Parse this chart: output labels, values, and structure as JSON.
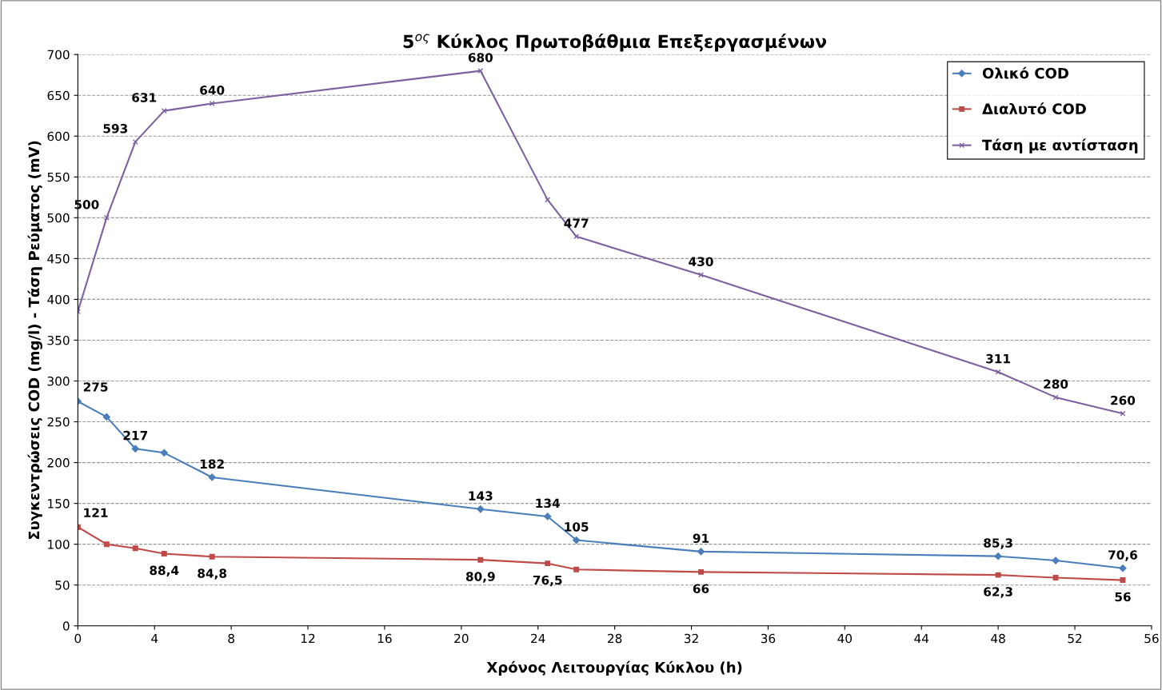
{
  "chart_data": {
    "type": "line",
    "title": "5$^{ος}$ Κύκλος Πρωτοβάθμια Επεξεργασμένων",
    "xlabel": "Χρόνος Λειτουργίας Κύκλου (h)",
    "ylabel": "Συγκεντρώσεις COD (mg/l) - Τάση Ρεύματος (mV)",
    "x": [
      0,
      1.5,
      3,
      4.5,
      7,
      21,
      24.5,
      26,
      32.5,
      48,
      51,
      54.5
    ],
    "series": [
      {
        "name": "Ολικό COD",
        "color": "#4a7ebb",
        "marker": "diamond",
        "values": [
          275,
          256,
          217,
          212,
          182,
          143,
          134,
          105,
          91,
          85.3,
          80,
          70.6
        ],
        "value_labels": [
          "275",
          null,
          "217",
          null,
          "182",
          "143",
          "134",
          "105",
          "91",
          "85,3",
          null,
          "70,6"
        ]
      },
      {
        "name": "Διαλυτό COD",
        "color": "#be4b48",
        "marker": "square",
        "values": [
          121,
          100,
          95,
          88.4,
          84.8,
          80.9,
          76.5,
          69,
          66,
          62.3,
          59,
          56
        ],
        "value_labels": [
          "121",
          null,
          null,
          "88,4",
          "84,8",
          "80,9",
          "76,5",
          null,
          "66",
          "62,3",
          null,
          "56"
        ]
      },
      {
        "name": "Τάση με αντίσταση",
        "color": "#7d60a0",
        "marker": "cross",
        "values": [
          385,
          500,
          593,
          631,
          640,
          680,
          522,
          477,
          430,
          311,
          280,
          260
        ],
        "value_labels": [
          null,
          "500",
          "593",
          "631",
          "640",
          "680",
          null,
          "477",
          "430",
          "311",
          "280",
          "260"
        ]
      }
    ],
    "xlim": [
      0,
      56
    ],
    "xticks": [
      0,
      4,
      8,
      12,
      16,
      20,
      24,
      28,
      32,
      36,
      40,
      44,
      48,
      52,
      56
    ],
    "ylim": [
      0,
      700
    ],
    "yticks": [
      0,
      50,
      100,
      150,
      200,
      250,
      300,
      350,
      400,
      450,
      500,
      550,
      600,
      650,
      700
    ],
    "grid": "y",
    "legend": "top right",
    "line_style": "solid"
  }
}
